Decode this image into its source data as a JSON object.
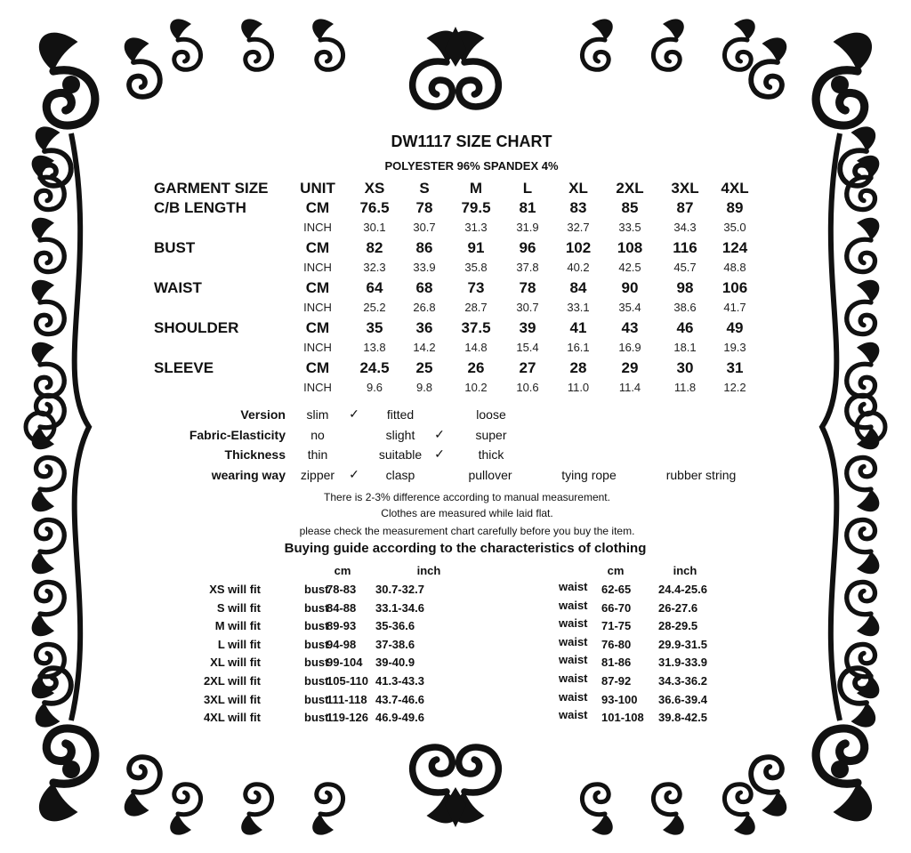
{
  "title": "DW1117 SIZE CHART",
  "material": "POLYESTER 96% SPANDEX 4%",
  "size_table": {
    "header": [
      "GARMENT SIZE",
      "UNIT",
      "XS",
      "S",
      "M",
      "L",
      "XL",
      "2XL",
      "3XL",
      "4XL"
    ],
    "rows": [
      {
        "label": "C/B LENGTH",
        "cm_unit": "CM",
        "cm": [
          "76.5",
          "78",
          "79.5",
          "81",
          "83",
          "85",
          "87",
          "89"
        ],
        "inch_unit": "INCH",
        "inch": [
          "30.1",
          "30.7",
          "31.3",
          "31.9",
          "32.7",
          "33.5",
          "34.3",
          "35.0"
        ]
      },
      {
        "label": "BUST",
        "cm_unit": "CM",
        "cm": [
          "82",
          "86",
          "91",
          "96",
          "102",
          "108",
          "116",
          "124"
        ],
        "inch_unit": "INCH",
        "inch": [
          "32.3",
          "33.9",
          "35.8",
          "37.8",
          "40.2",
          "42.5",
          "45.7",
          "48.8"
        ]
      },
      {
        "label": "WAIST",
        "cm_unit": "CM",
        "cm": [
          "64",
          "68",
          "73",
          "78",
          "84",
          "90",
          "98",
          "106"
        ],
        "inch_unit": "INCH",
        "inch": [
          "25.2",
          "26.8",
          "28.7",
          "30.7",
          "33.1",
          "35.4",
          "38.6",
          "41.7"
        ]
      },
      {
        "label": "SHOULDER",
        "cm_unit": "CM",
        "cm": [
          "35",
          "36",
          "37.5",
          "39",
          "41",
          "43",
          "46",
          "49"
        ],
        "inch_unit": "INCH",
        "inch": [
          "13.8",
          "14.2",
          "14.8",
          "15.4",
          "16.1",
          "16.9",
          "18.1",
          "19.3"
        ]
      },
      {
        "label": "SLEEVE",
        "cm_unit": "CM",
        "cm": [
          "24.5",
          "25",
          "26",
          "27",
          "28",
          "29",
          "30",
          "31"
        ],
        "inch_unit": "INCH",
        "inch": [
          "9.6",
          "9.8",
          "10.2",
          "10.6",
          "11.0",
          "11.4",
          "11.8",
          "12.2"
        ]
      }
    ]
  },
  "attributes": [
    {
      "label": "Version",
      "options": [
        "slim",
        "fitted",
        "loose"
      ],
      "checked": "slim"
    },
    {
      "label": "Fabric-Elasticity",
      "options": [
        "no",
        "slight",
        "super"
      ],
      "checked": "slight"
    },
    {
      "label": "Thickness",
      "options": [
        "thin",
        "suitable",
        "thick"
      ],
      "checked": "suitable"
    },
    {
      "label": "wearing way",
      "options": [
        "zipper",
        "clasp",
        "pullover",
        "tying rope",
        "rubber string"
      ],
      "checked": "zipper"
    }
  ],
  "check_mark": "✓",
  "notes": [
    "There is 2-3% difference according to manual measurement.",
    "Clothes are measured while laid flat.",
    "please check the measurement chart carefully before you buy the item."
  ],
  "guide": {
    "title": "Buying guide according to the characteristics of clothing",
    "cm_header": "cm",
    "inch_header": "inch",
    "rows": [
      {
        "size": "XS will  fit",
        "bust_label": "bust",
        "bust_cm": "78-83",
        "bust_inch": "30.7-32.7",
        "waist_label": "waist",
        "waist_cm": "62-65",
        "waist_inch": "24.4-25.6"
      },
      {
        "size": "S will  fit",
        "bust_label": "bust",
        "bust_cm": "84-88",
        "bust_inch": "33.1-34.6",
        "waist_label": "waist",
        "waist_cm": "66-70",
        "waist_inch": "26-27.6"
      },
      {
        "size": "M will fit",
        "bust_label": "bust",
        "bust_cm": "89-93",
        "bust_inch": "35-36.6",
        "waist_label": "waist",
        "waist_cm": "71-75",
        "waist_inch": "28-29.5"
      },
      {
        "size": "L will fit",
        "bust_label": "bust",
        "bust_cm": "94-98",
        "bust_inch": "37-38.6",
        "waist_label": "waist",
        "waist_cm": "76-80",
        "waist_inch": "29.9-31.5"
      },
      {
        "size": "XL will fit",
        "bust_label": "bust",
        "bust_cm": "99-104",
        "bust_inch": "39-40.9",
        "waist_label": "waist",
        "waist_cm": "81-86",
        "waist_inch": "31.9-33.9"
      },
      {
        "size": "2XL will fit",
        "bust_label": "bust",
        "bust_cm": "105-110",
        "bust_inch": "41.3-43.3",
        "waist_label": "waist",
        "waist_cm": "87-92",
        "waist_inch": "34.3-36.2"
      },
      {
        "size": "3XL will fit",
        "bust_label": "bust",
        "bust_cm": "111-118",
        "bust_inch": "43.7-46.6",
        "waist_label": "waist",
        "waist_cm": "93-100",
        "waist_inch": "36.6-39.4"
      },
      {
        "size": "4XL will fit",
        "bust_label": "bust",
        "bust_cm": "119-126",
        "bust_inch": "46.9-49.6",
        "waist_label": "waist",
        "waist_cm": "101-108",
        "waist_inch": "39.8-42.5"
      }
    ]
  },
  "colors": {
    "ink": "#111111",
    "background": "#ffffff"
  }
}
